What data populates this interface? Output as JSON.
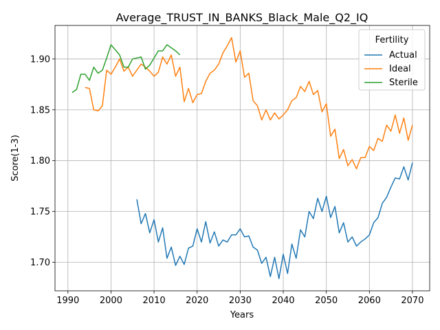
{
  "chart_data": {
    "type": "line",
    "title": "Average_TRUST_IN_BANKS_Black_Male_Q2_IQ",
    "xlabel": "Years",
    "ylabel": "Score(1-3)",
    "xlim": [
      1987,
      2074
    ],
    "ylim": [
      1.672,
      1.933
    ],
    "xticks": [
      1990,
      2000,
      2010,
      2020,
      2030,
      2040,
      2050,
      2060,
      2070
    ],
    "yticks": [
      1.7,
      1.75,
      1.8,
      1.85,
      1.9
    ],
    "ytick_labels": [
      "1.70",
      "1.75",
      "1.80",
      "1.85",
      "1.90"
    ],
    "grid": true,
    "legend": {
      "title": "Fertility",
      "placement": "top-right"
    },
    "series": [
      {
        "name": "Actual",
        "color": "#1f77b4",
        "points": [
          [
            2006,
            1.762
          ],
          [
            2007,
            1.738
          ],
          [
            2008,
            1.748
          ],
          [
            2009,
            1.729
          ],
          [
            2010,
            1.742
          ],
          [
            2011,
            1.72
          ],
          [
            2012,
            1.734
          ],
          [
            2013,
            1.704
          ],
          [
            2014,
            1.715
          ],
          [
            2015,
            1.697
          ],
          [
            2016,
            1.706
          ],
          [
            2017,
            1.698
          ],
          [
            2018,
            1.714
          ],
          [
            2019,
            1.716
          ],
          [
            2020,
            1.733
          ],
          [
            2021,
            1.72
          ],
          [
            2022,
            1.74
          ],
          [
            2023,
            1.719
          ],
          [
            2024,
            1.73
          ],
          [
            2025,
            1.716
          ],
          [
            2026,
            1.722
          ],
          [
            2027,
            1.72
          ],
          [
            2028,
            1.727
          ],
          [
            2029,
            1.727
          ],
          [
            2030,
            1.733
          ],
          [
            2031,
            1.725
          ],
          [
            2032,
            1.726
          ],
          [
            2033,
            1.715
          ],
          [
            2034,
            1.712
          ],
          [
            2035,
            1.699
          ],
          [
            2036,
            1.705
          ],
          [
            2037,
            1.686
          ],
          [
            2038,
            1.705
          ],
          [
            2039,
            1.684
          ],
          [
            2040,
            1.708
          ],
          [
            2041,
            1.689
          ],
          [
            2042,
            1.718
          ],
          [
            2043,
            1.704
          ],
          [
            2044,
            1.732
          ],
          [
            2045,
            1.725
          ],
          [
            2046,
            1.75
          ],
          [
            2047,
            1.743
          ],
          [
            2048,
            1.763
          ],
          [
            2049,
            1.75
          ],
          [
            2050,
            1.765
          ],
          [
            2051,
            1.744
          ],
          [
            2052,
            1.755
          ],
          [
            2053,
            1.729
          ],
          [
            2054,
            1.739
          ],
          [
            2055,
            1.72
          ],
          [
            2056,
            1.725
          ],
          [
            2057,
            1.716
          ],
          [
            2058,
            1.72
          ],
          [
            2059,
            1.723
          ],
          [
            2060,
            1.727
          ],
          [
            2061,
            1.739
          ],
          [
            2062,
            1.744
          ],
          [
            2063,
            1.758
          ],
          [
            2064,
            1.764
          ],
          [
            2065,
            1.774
          ],
          [
            2066,
            1.783
          ],
          [
            2067,
            1.782
          ],
          [
            2068,
            1.794
          ],
          [
            2069,
            1.781
          ],
          [
            2070,
            1.798
          ]
        ]
      },
      {
        "name": "Ideal",
        "color": "#ff7f0e",
        "points": [
          [
            1994,
            1.872
          ],
          [
            1995,
            1.871
          ],
          [
            1996,
            1.85
          ],
          [
            1997,
            1.849
          ],
          [
            1998,
            1.854
          ],
          [
            1999,
            1.889
          ],
          [
            2000,
            1.885
          ],
          [
            2001,
            1.892
          ],
          [
            2002,
            1.9
          ],
          [
            2003,
            1.888
          ],
          [
            2004,
            1.892
          ],
          [
            2005,
            1.883
          ],
          [
            2006,
            1.889
          ],
          [
            2007,
            1.895
          ],
          [
            2008,
            1.892
          ],
          [
            2009,
            1.888
          ],
          [
            2010,
            1.883
          ],
          [
            2011,
            1.887
          ],
          [
            2012,
            1.902
          ],
          [
            2013,
            1.895
          ],
          [
            2014,
            1.904
          ],
          [
            2015,
            1.883
          ],
          [
            2016,
            1.892
          ],
          [
            2017,
            1.858
          ],
          [
            2018,
            1.871
          ],
          [
            2019,
            1.857
          ],
          [
            2020,
            1.865
          ],
          [
            2021,
            1.866
          ],
          [
            2022,
            1.878
          ],
          [
            2023,
            1.886
          ],
          [
            2024,
            1.889
          ],
          [
            2025,
            1.895
          ],
          [
            2026,
            1.906
          ],
          [
            2027,
            1.913
          ],
          [
            2028,
            1.921
          ],
          [
            2029,
            1.897
          ],
          [
            2030,
            1.908
          ],
          [
            2031,
            1.882
          ],
          [
            2032,
            1.886
          ],
          [
            2033,
            1.859
          ],
          [
            2034,
            1.854
          ],
          [
            2035,
            1.84
          ],
          [
            2036,
            1.85
          ],
          [
            2037,
            1.84
          ],
          [
            2038,
            1.847
          ],
          [
            2039,
            1.841
          ],
          [
            2040,
            1.845
          ],
          [
            2041,
            1.85
          ],
          [
            2042,
            1.859
          ],
          [
            2043,
            1.862
          ],
          [
            2044,
            1.873
          ],
          [
            2045,
            1.868
          ],
          [
            2046,
            1.878
          ],
          [
            2047,
            1.865
          ],
          [
            2048,
            1.869
          ],
          [
            2049,
            1.848
          ],
          [
            2050,
            1.856
          ],
          [
            2051,
            1.824
          ],
          [
            2052,
            1.831
          ],
          [
            2053,
            1.802
          ],
          [
            2054,
            1.811
          ],
          [
            2055,
            1.795
          ],
          [
            2056,
            1.801
          ],
          [
            2057,
            1.792
          ],
          [
            2058,
            1.803
          ],
          [
            2059,
            1.803
          ],
          [
            2060,
            1.814
          ],
          [
            2061,
            1.81
          ],
          [
            2062,
            1.822
          ],
          [
            2063,
            1.819
          ],
          [
            2064,
            1.835
          ],
          [
            2065,
            1.829
          ],
          [
            2066,
            1.845
          ],
          [
            2067,
            1.827
          ],
          [
            2068,
            1.842
          ],
          [
            2069,
            1.82
          ],
          [
            2070,
            1.835
          ]
        ]
      },
      {
        "name": "Sterile",
        "color": "#2ca02c",
        "points": [
          [
            1991,
            1.867
          ],
          [
            1992,
            1.87
          ],
          [
            1993,
            1.885
          ],
          [
            1994,
            1.885
          ],
          [
            1995,
            1.879
          ],
          [
            1996,
            1.892
          ],
          [
            1997,
            1.886
          ],
          [
            1998,
            1.889
          ],
          [
            1999,
            1.901
          ],
          [
            2000,
            1.914
          ],
          [
            2001,
            1.909
          ],
          [
            2002,
            1.904
          ],
          [
            2003,
            1.892
          ],
          [
            2004,
            1.892
          ],
          [
            2005,
            1.9
          ],
          [
            2006,
            1.901
          ],
          [
            2007,
            1.902
          ],
          [
            2008,
            1.89
          ],
          [
            2009,
            1.894
          ],
          [
            2010,
            1.901
          ],
          [
            2011,
            1.908
          ],
          [
            2012,
            1.908
          ],
          [
            2013,
            1.914
          ],
          [
            2014,
            1.911
          ],
          [
            2015,
            1.908
          ],
          [
            2016,
            1.904
          ]
        ]
      }
    ]
  }
}
